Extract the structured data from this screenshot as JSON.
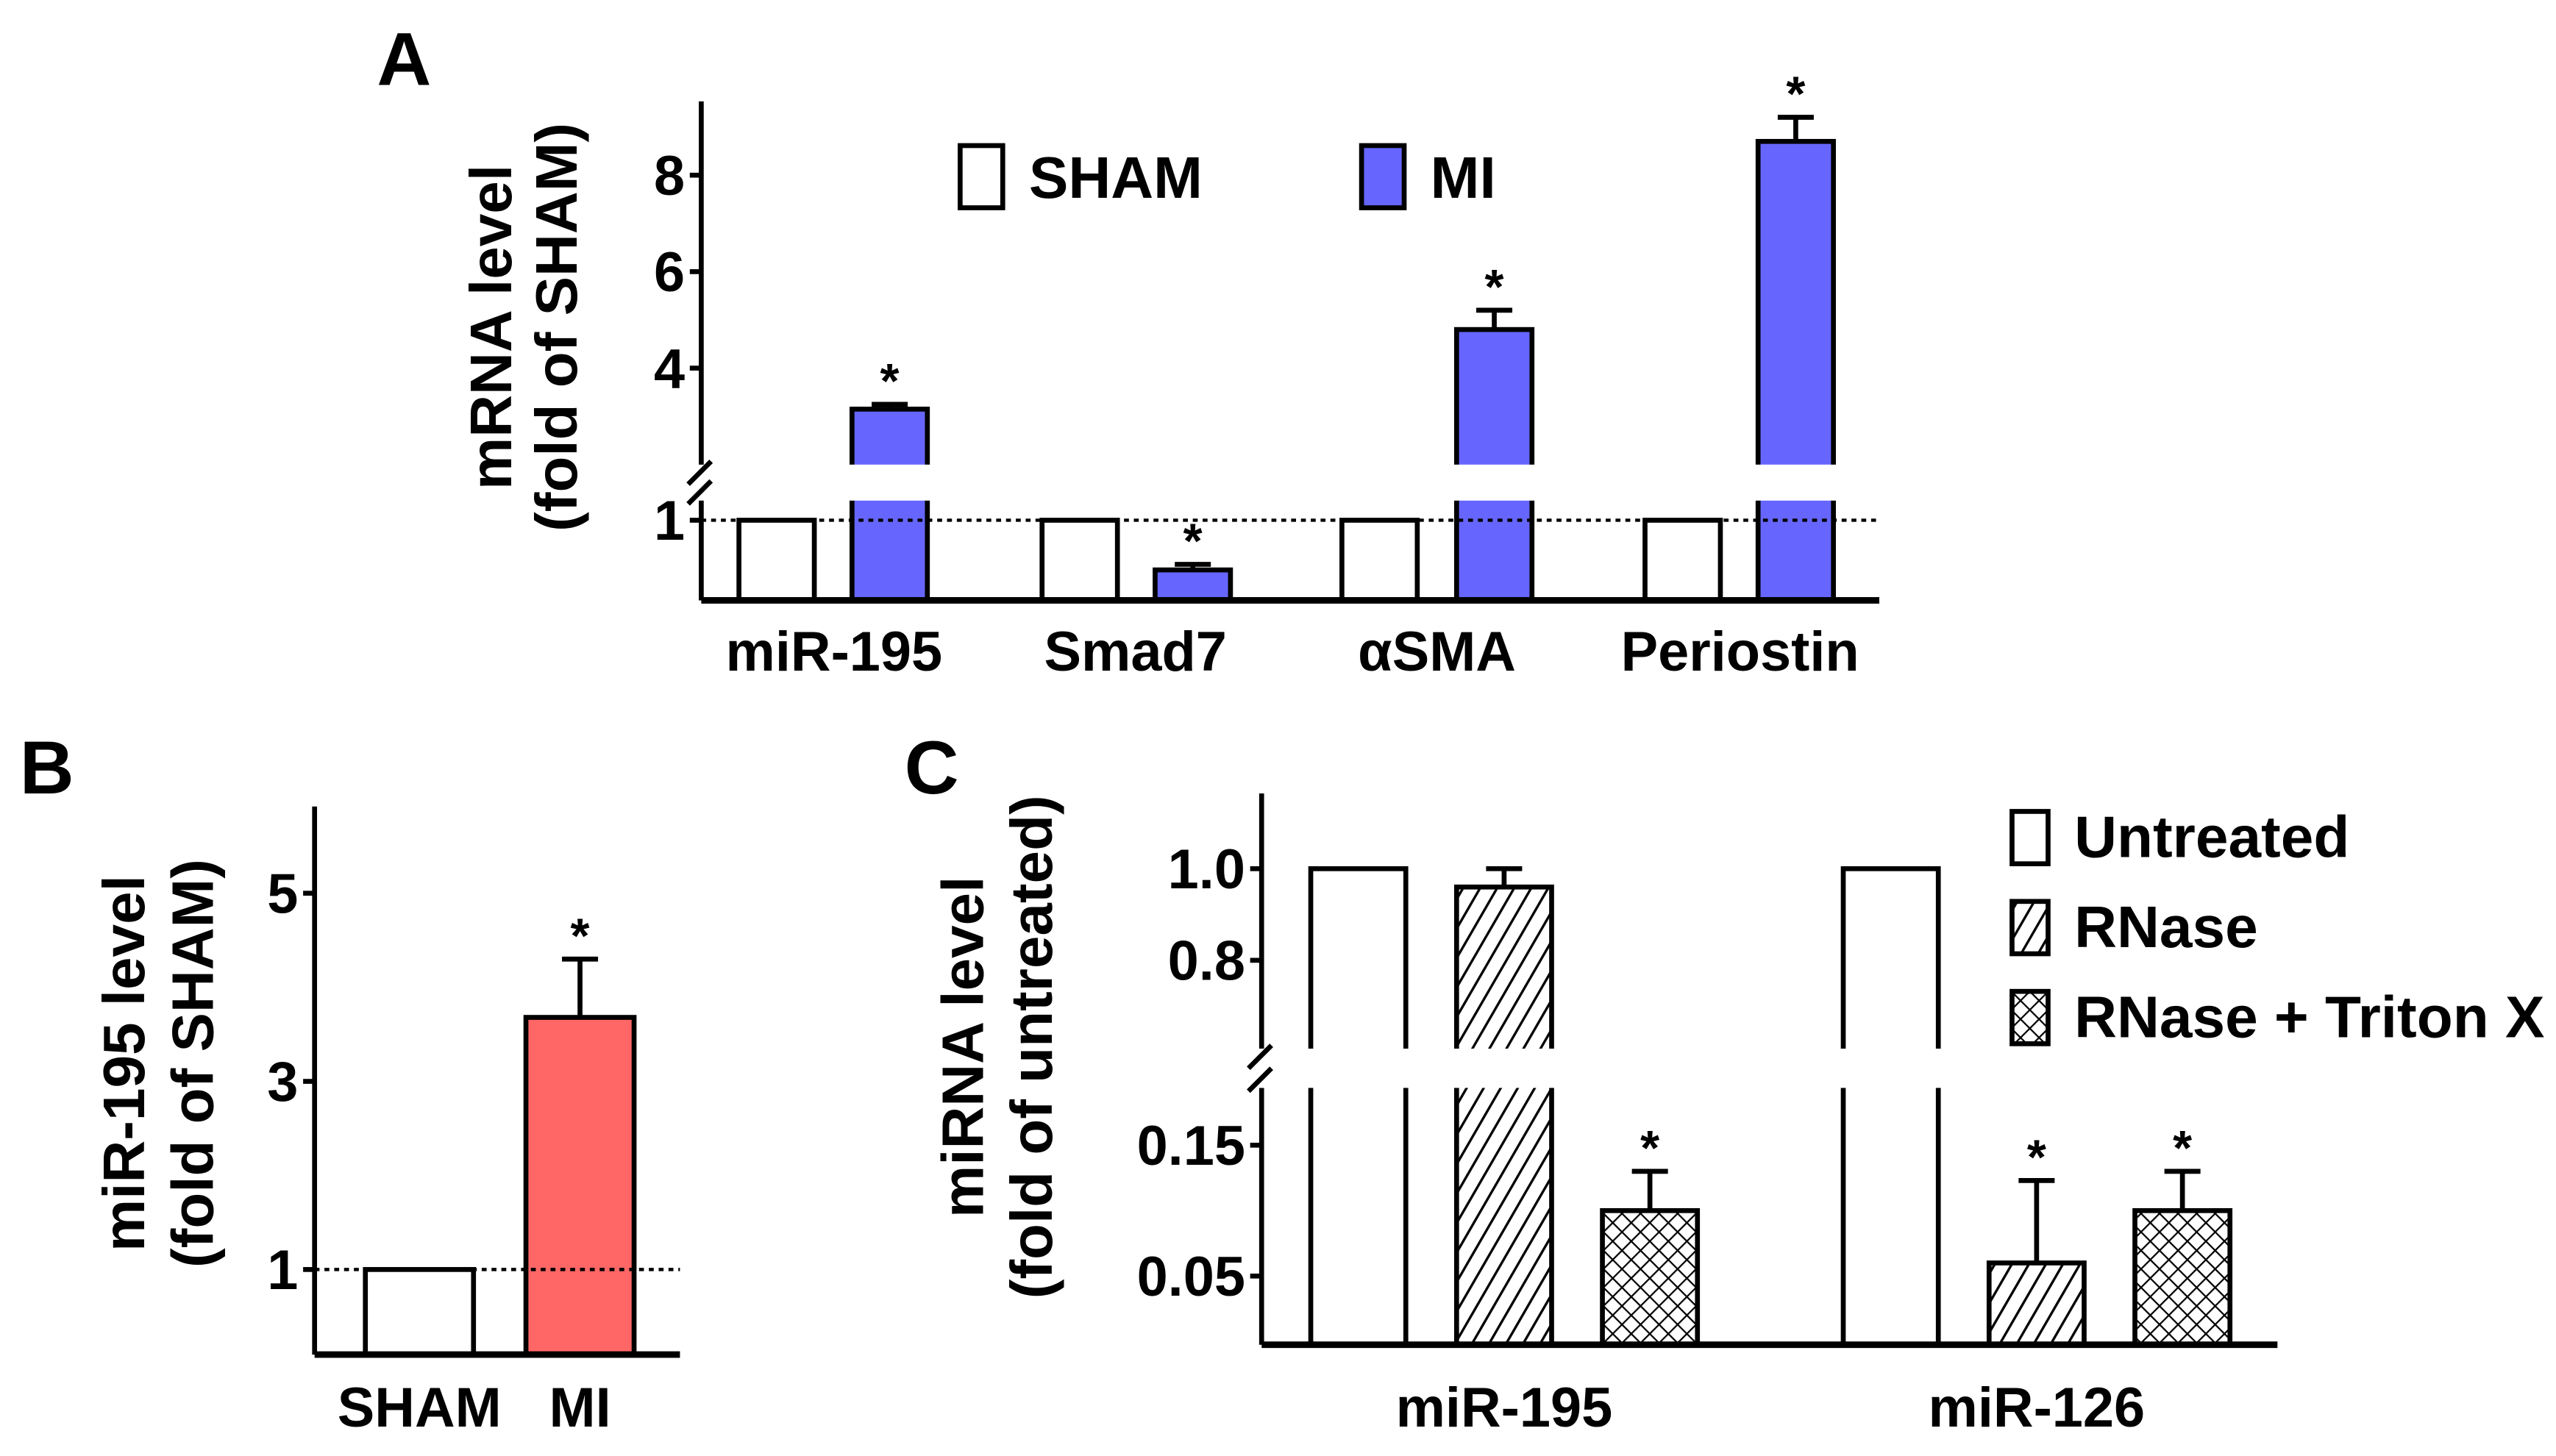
{
  "colors": {
    "sham": "#ffffff",
    "mi_A": "#6666ff",
    "mi_B": "#ff6666",
    "stroke": "#000000"
  },
  "chart_data": [
    {
      "panel": "A",
      "type": "bar",
      "ylabel_line1": "mRNA level",
      "ylabel_line2": "(fold of SHAM)",
      "categories": [
        "miR-195",
        "Smad7",
        "αSMA",
        "Periostin"
      ],
      "axis_break": [
        1.25,
        2
      ],
      "ylim": [
        0,
        9.8
      ],
      "yticks": [
        {
          "value": 1,
          "label": "1"
        },
        {
          "value": 4,
          "label": "4"
        },
        {
          "value": 6,
          "label": "6"
        },
        {
          "value": 8,
          "label": "8"
        }
      ],
      "reference_line": 1,
      "legend": [
        "SHAM",
        "MI"
      ],
      "legend_placement": "top-center",
      "series": [
        {
          "name": "SHAM",
          "values": [
            1,
            1,
            1,
            1
          ],
          "errors": [
            0,
            0,
            0,
            0
          ],
          "significant": [
            false,
            false,
            false,
            false
          ]
        },
        {
          "name": "MI",
          "values": [
            3.15,
            0.38,
            4.8,
            8.7
          ],
          "errors": [
            0.1,
            0.07,
            0.4,
            0.5
          ],
          "significant": [
            true,
            true,
            true,
            true
          ]
        }
      ],
      "significance_marker": "*"
    },
    {
      "panel": "B",
      "type": "bar",
      "ylabel_line1": "miR-195 level",
      "ylabel_line2": "(fold of SHAM)",
      "categories": [
        "SHAM",
        "MI"
      ],
      "ylim": [
        0,
        5.9
      ],
      "yticks": [
        {
          "value": 1,
          "label": "1"
        },
        {
          "value": 3,
          "label": "3"
        },
        {
          "value": 5,
          "label": "5"
        }
      ],
      "reference_line": 1,
      "values": [
        1,
        3.68
      ],
      "errors": [
        0,
        0.62
      ],
      "significant": [
        false,
        true
      ],
      "significance_marker": "*"
    },
    {
      "panel": "C",
      "type": "bar",
      "ylabel_line1": "miRNA level",
      "ylabel_line2": "(fold of untreated)",
      "categories": [
        "miR-195",
        "miR-126"
      ],
      "axis_break": [
        0.194,
        0.61
      ],
      "ylim": [
        0,
        1.16
      ],
      "yticks": [
        {
          "value": 0.05,
          "label": "0.05"
        },
        {
          "value": 0.15,
          "label": "0.15"
        },
        {
          "value": 0.8,
          "label": "0.8"
        },
        {
          "value": 1.0,
          "label": "1.0"
        }
      ],
      "legend": [
        "Untreated",
        "RNase",
        "RNase + Triton X"
      ],
      "legend_placement": "top-right",
      "series": [
        {
          "name": "Untreated",
          "values": [
            1.0,
            1.0
          ],
          "errors": [
            0,
            0
          ],
          "significant": [
            false,
            false
          ]
        },
        {
          "name": "RNase",
          "values": [
            0.96,
            0.06
          ],
          "errors": [
            0.04,
            0.063
          ],
          "significant": [
            false,
            true
          ]
        },
        {
          "name": "RNase + Triton X",
          "values": [
            0.1,
            0.1
          ],
          "errors": [
            0.03,
            0.03
          ],
          "significant": [
            true,
            true
          ]
        }
      ],
      "significance_marker": "*"
    }
  ]
}
